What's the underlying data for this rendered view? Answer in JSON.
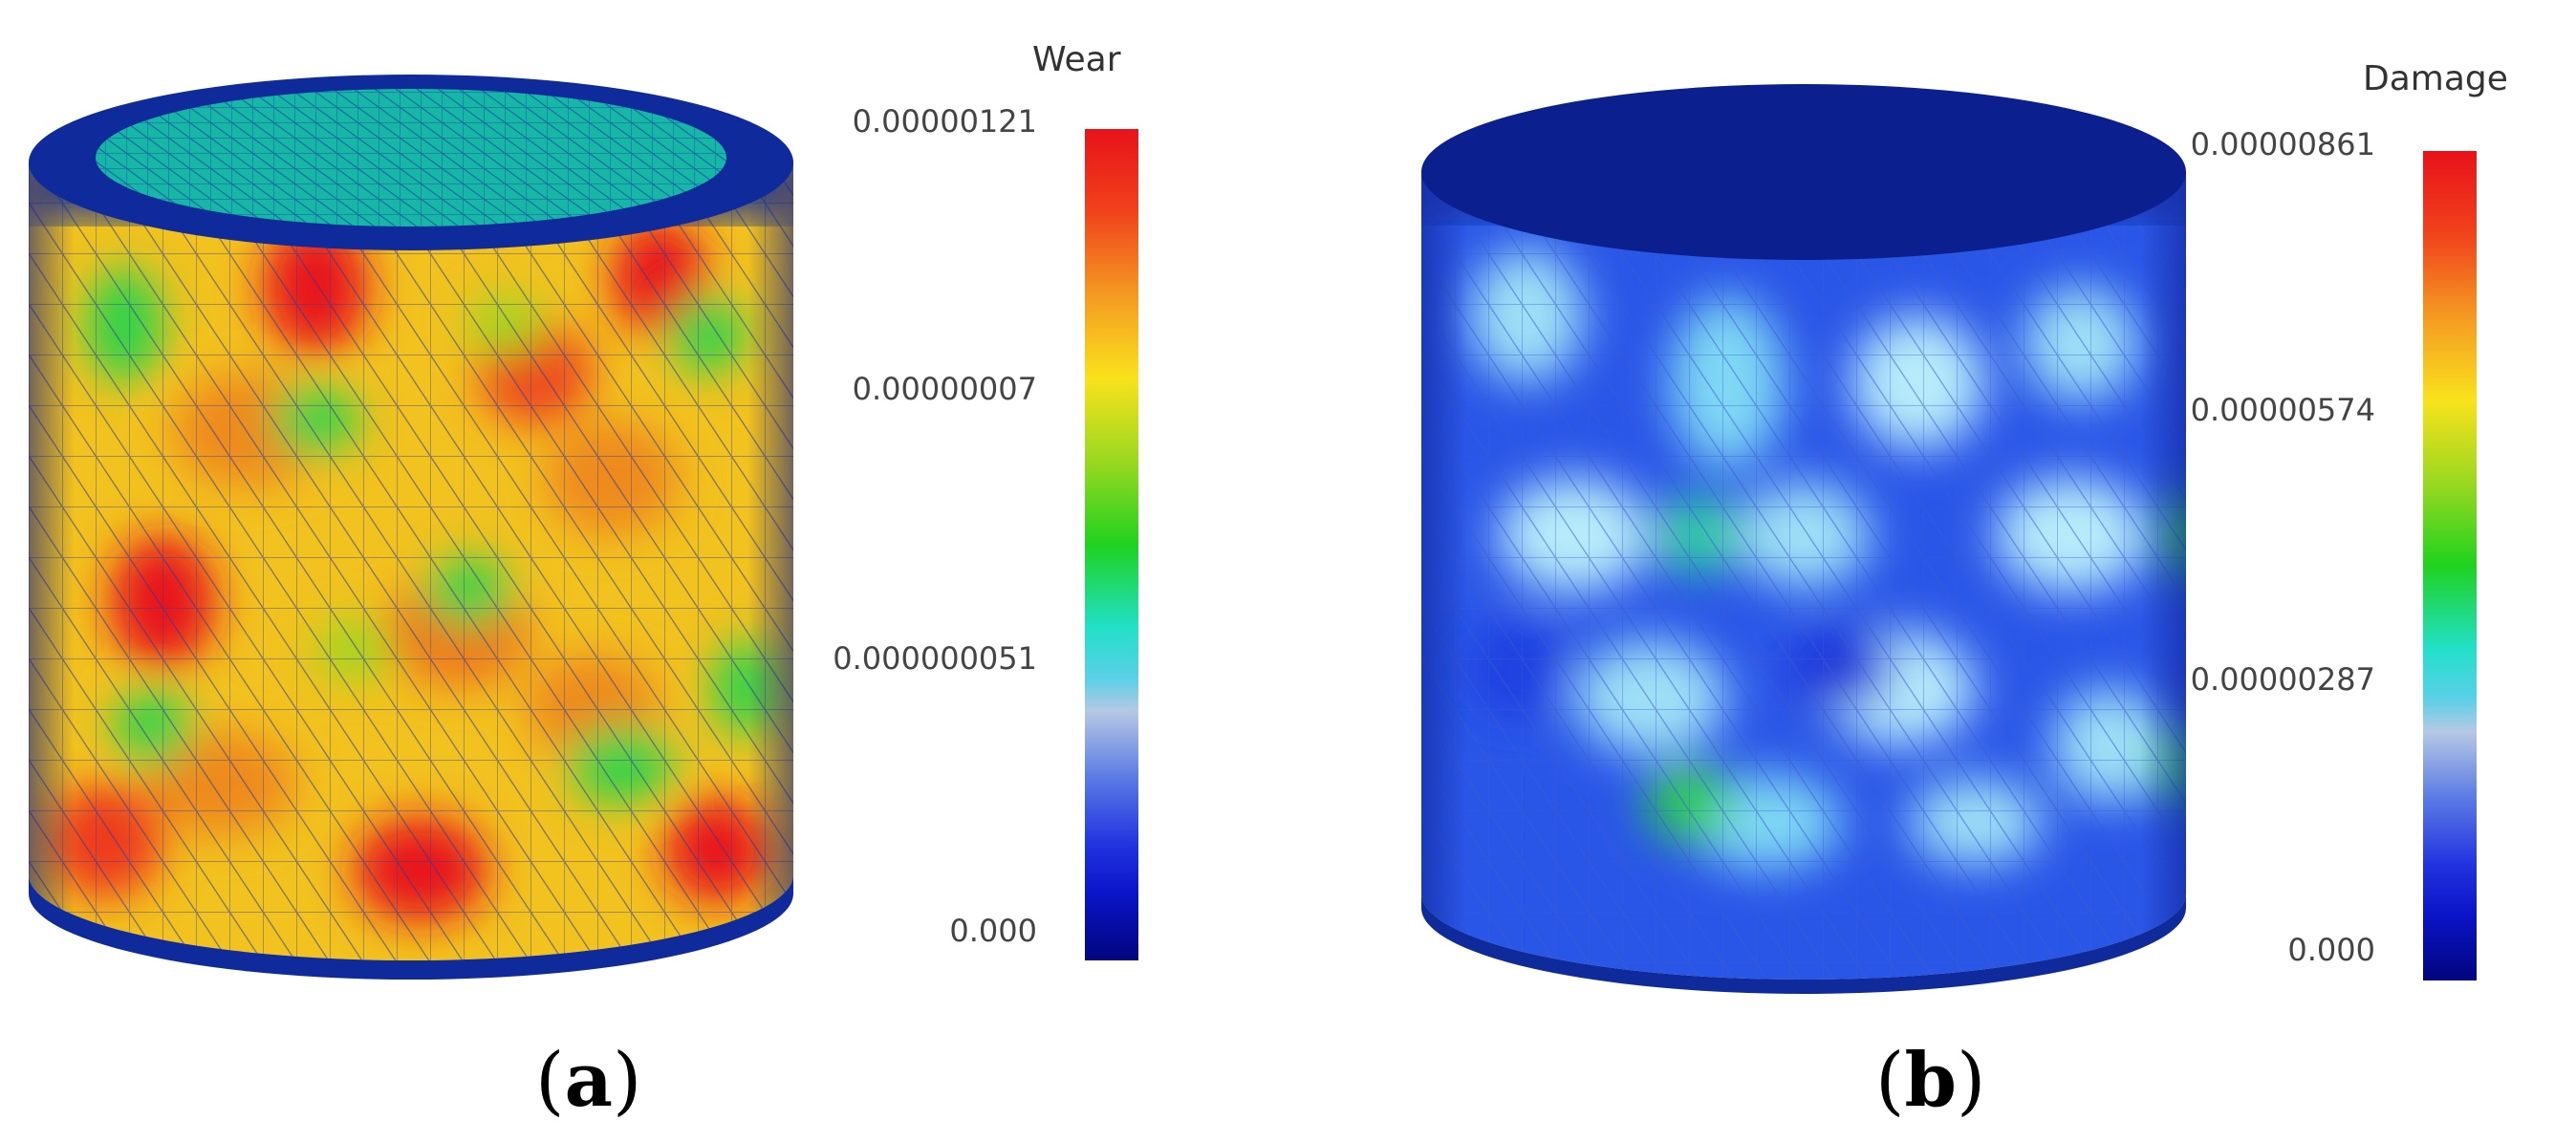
{
  "panels": [
    {
      "id": "a",
      "label_open": "(",
      "label_letter": "a",
      "label_close": ")",
      "colorbar": {
        "title": "Wear",
        "ticks": [
          "0.00000121",
          "0.00000007",
          "0.000000051",
          "0.000"
        ]
      },
      "colors": {
        "top": "#16b7a6",
        "rim": "#0f2a9a",
        "base": "#f2c21e",
        "hot": "#e8121a",
        "warm": "#ee8a1e",
        "cool": "#2ed34a"
      }
    },
    {
      "id": "b",
      "label_open": "(",
      "label_letter": "b",
      "label_close": ")",
      "colorbar": {
        "title": "Damage",
        "ticks": [
          "0.00000861",
          "0.00000574",
          "0.00000287",
          "0.000"
        ]
      },
      "colors": {
        "top": "#0b1f8e",
        "rim": "#0f2a9a",
        "base": "#2a56e8",
        "light": "#7fd8f4",
        "pale": "#b8ecfa",
        "cool": "#2ed34a"
      }
    }
  ]
}
